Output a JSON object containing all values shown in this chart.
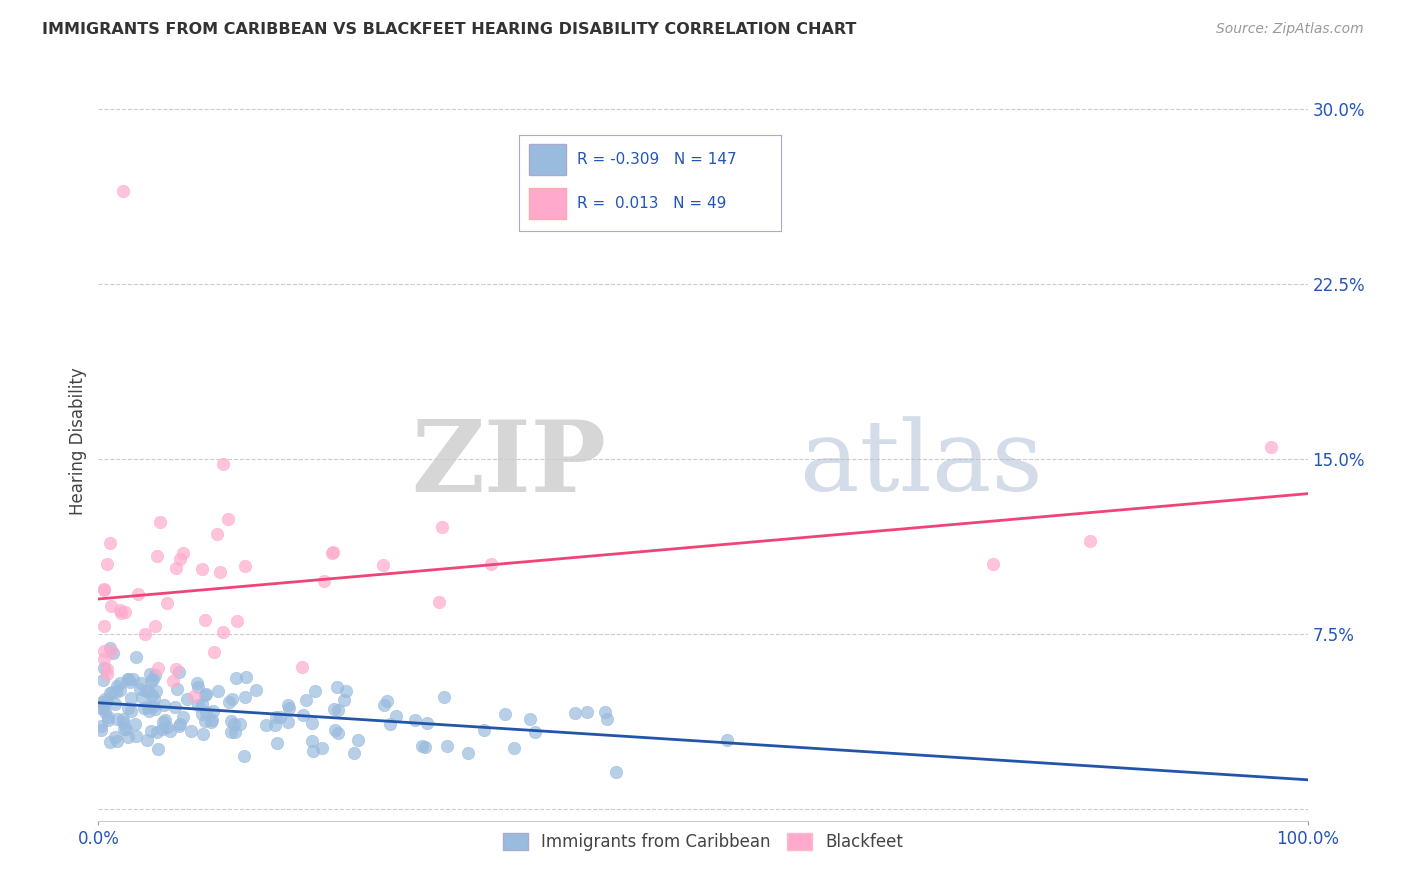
{
  "title": "IMMIGRANTS FROM CARIBBEAN VS BLACKFEET HEARING DISABILITY CORRELATION CHART",
  "source": "Source: ZipAtlas.com",
  "ylabel": "Hearing Disability",
  "xlim": [
    0,
    100
  ],
  "ylim": [
    -0.005,
    0.32
  ],
  "yticks": [
    0.0,
    0.075,
    0.15,
    0.225,
    0.3
  ],
  "ytick_labels": [
    "",
    "7.5%",
    "15.0%",
    "22.5%",
    "30.0%"
  ],
  "xtick_labels": [
    "0.0%",
    "100.0%"
  ],
  "blue_color": "#99BBDD",
  "pink_color": "#FFAACC",
  "blue_line_color": "#2255AA",
  "pink_line_color": "#EE4477",
  "legend_text_color": "#2255BB",
  "R_blue": -0.309,
  "N_blue": 147,
  "R_pink": 0.013,
  "N_pink": 49,
  "watermark_zip": "ZIP",
  "watermark_atlas": "atlas",
  "background_color": "#FFFFFF",
  "grid_color": "#CCCCCC",
  "title_color": "#333333",
  "source_color": "#999999",
  "ylabel_color": "#444444",
  "tick_label_color": "#2255BB"
}
